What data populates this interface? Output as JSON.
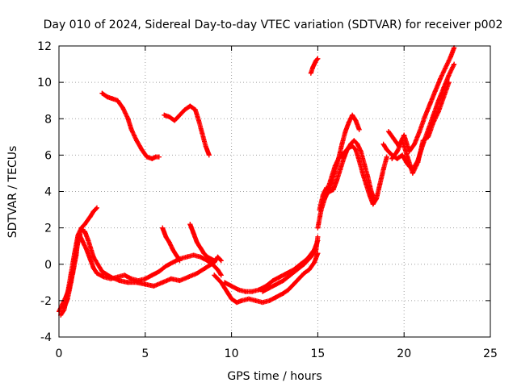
{
  "chart_data": {
    "type": "scatter",
    "title": "Day 010 of 2024, Sidereal Day-to-day VTEC variation (SDTVAR) for receiver p002",
    "xlabel": "GPS time / hours",
    "ylabel": "SDTVAR / TECUs",
    "xlim": [
      0,
      25
    ],
    "ylim": [
      -4,
      12
    ],
    "xticks": [
      0,
      5,
      10,
      15,
      20,
      25
    ],
    "yticks": [
      -4,
      -2,
      0,
      2,
      4,
      6,
      8,
      10,
      12
    ],
    "grid": true,
    "marker": "plus",
    "color": "#ff0000",
    "series": [
      {
        "x": [
          0.0,
          0.2,
          0.4,
          0.6,
          0.8,
          1.0,
          1.1,
          1.2,
          1.4,
          1.6,
          1.8,
          2.0,
          2.2,
          2.6,
          3.0,
          3.4,
          3.8,
          4.2,
          4.6,
          5.0,
          5.4,
          5.8,
          6.2,
          6.6,
          7.0,
          7.4,
          7.8,
          8.2,
          8.6,
          8.9,
          9.2,
          9.4
        ],
        "y": [
          -2.6,
          -2.2,
          -1.8,
          -1.3,
          -0.5,
          0.5,
          1.4,
          1.6,
          1.2,
          0.8,
          0.3,
          -0.2,
          -0.5,
          -0.7,
          -0.8,
          -0.7,
          -0.6,
          -0.8,
          -0.9,
          -0.8,
          -0.6,
          -0.4,
          -0.1,
          0.1,
          0.3,
          0.4,
          0.5,
          0.4,
          0.2,
          0.0,
          -0.3,
          -0.6
        ]
      },
      {
        "x": [
          0.1,
          0.3,
          0.5,
          0.7,
          0.9,
          1.1,
          1.3,
          1.5,
          1.8,
          2.0,
          2.2
        ],
        "y": [
          -2.8,
          -2.5,
          -1.6,
          -0.5,
          0.6,
          1.6,
          2.0,
          2.2,
          2.6,
          2.9,
          3.1
        ]
      },
      {
        "x": [
          0.3,
          0.5,
          0.7,
          0.9,
          1.1,
          1.3,
          1.5,
          1.7,
          2.0,
          2.5,
          3.0,
          3.5,
          4.0,
          4.5,
          5.0,
          5.5,
          6.0,
          6.5,
          7.0,
          7.5,
          8.0,
          8.5,
          9.0,
          9.2,
          9.4
        ],
        "y": [
          -2.4,
          -1.9,
          -1.0,
          0.2,
          1.2,
          1.9,
          1.8,
          1.3,
          0.4,
          -0.4,
          -0.7,
          -0.9,
          -1.0,
          -1.0,
          -1.1,
          -1.2,
          -1.0,
          -0.8,
          -0.9,
          -0.7,
          -0.5,
          -0.2,
          0.1,
          0.4,
          0.2
        ]
      },
      {
        "x": [
          2.5,
          2.8,
          3.1,
          3.4,
          3.7,
          4.0,
          4.2,
          4.5,
          4.8,
          5.1,
          5.4,
          5.6,
          5.8
        ],
        "y": [
          9.4,
          9.2,
          9.1,
          9.0,
          8.6,
          8.0,
          7.4,
          6.8,
          6.3,
          5.9,
          5.8,
          5.9,
          5.9
        ]
      },
      {
        "x": [
          6.1,
          6.4,
          6.7,
          7.0,
          7.3,
          7.6,
          7.9,
          8.1,
          8.3,
          8.5,
          8.7
        ],
        "y": [
          8.2,
          8.1,
          7.9,
          8.2,
          8.5,
          8.7,
          8.5,
          7.9,
          7.2,
          6.5,
          6.0
        ]
      },
      {
        "x": [
          6.0,
          6.2,
          6.4,
          6.6,
          6.8,
          7.0
        ],
        "y": [
          2.0,
          1.5,
          1.2,
          0.8,
          0.5,
          0.2
        ]
      },
      {
        "x": [
          7.6,
          7.8,
          8.0,
          8.2,
          8.4,
          8.6,
          8.8,
          9.0
        ],
        "y": [
          2.2,
          1.7,
          1.2,
          0.9,
          0.6,
          0.4,
          0.3,
          0.2
        ]
      },
      {
        "x": [
          9.0,
          9.2,
          9.4,
          9.6,
          9.8,
          10.0,
          10.3,
          10.6,
          11.0,
          11.4,
          11.8,
          12.2,
          12.6,
          13.0,
          13.3,
          13.6,
          13.9,
          14.2,
          14.5,
          14.8,
          15.0
        ],
        "y": [
          -0.6,
          -0.8,
          -1.0,
          -1.3,
          -1.6,
          -1.9,
          -2.1,
          -2.0,
          -1.9,
          -2.0,
          -2.1,
          -2.0,
          -1.8,
          -1.6,
          -1.4,
          -1.1,
          -0.8,
          -0.5,
          -0.3,
          0.1,
          0.6
        ]
      },
      {
        "x": [
          9.6,
          10.0,
          10.4,
          10.8,
          11.2,
          11.6,
          12.0,
          12.4,
          12.8,
          13.2,
          13.6,
          14.0,
          14.4,
          14.8,
          15.0
        ],
        "y": [
          -1.0,
          -1.2,
          -1.4,
          -1.5,
          -1.5,
          -1.4,
          -1.2,
          -0.9,
          -0.7,
          -0.5,
          -0.3,
          0.0,
          0.3,
          0.8,
          1.3
        ]
      },
      {
        "x": [
          11.8,
          12.2,
          12.6,
          13.0,
          13.4,
          13.8,
          14.2,
          14.6,
          14.9,
          15.0
        ],
        "y": [
          -1.5,
          -1.3,
          -1.1,
          -0.9,
          -0.6,
          -0.3,
          0.0,
          0.4,
          0.8,
          1.5
        ]
      },
      {
        "x": [
          14.6,
          14.7,
          14.8,
          14.9,
          15.0
        ],
        "y": [
          10.5,
          10.8,
          11.0,
          11.2,
          11.3
        ]
      },
      {
        "x": [
          15.0,
          15.2,
          15.4,
          15.6,
          15.8,
          16.0,
          16.2,
          16.4,
          16.6,
          16.8,
          17.0,
          17.2,
          17.4,
          17.6,
          17.8,
          18.0,
          18.2,
          18.4,
          18.6,
          18.8,
          19.0
        ],
        "y": [
          2.0,
          3.0,
          3.6,
          4.2,
          4.8,
          5.4,
          5.8,
          6.0,
          6.2,
          6.4,
          6.5,
          6.3,
          5.7,
          5.0,
          4.4,
          3.8,
          3.3,
          3.6,
          4.4,
          5.2,
          5.9
        ]
      },
      {
        "x": [
          15.1,
          15.3,
          15.5,
          15.7,
          15.9,
          16.1,
          16.3,
          16.5,
          16.7,
          16.9,
          17.1,
          17.3,
          17.5,
          17.7,
          17.9,
          18.1,
          18.3
        ],
        "y": [
          3.0,
          3.8,
          4.2,
          4.0,
          4.1,
          4.6,
          5.2,
          5.8,
          6.3,
          6.6,
          6.8,
          6.6,
          6.2,
          5.5,
          4.8,
          4.0,
          3.5
        ]
      },
      {
        "x": [
          15.4,
          15.6,
          15.8,
          16.0,
          16.2,
          16.4,
          16.6,
          16.8,
          17.0,
          17.2,
          17.4
        ],
        "y": [
          3.6,
          4.0,
          4.5,
          5.1,
          5.8,
          6.6,
          7.3,
          7.8,
          8.2,
          7.9,
          7.4
        ]
      },
      {
        "x": [
          18.8,
          19.0,
          19.3,
          19.6,
          19.9,
          20.2,
          20.5,
          20.8,
          21.1,
          21.4,
          21.7,
          22.0,
          22.3,
          22.6,
          22.9
        ],
        "y": [
          6.6,
          6.3,
          6.0,
          5.8,
          6.0,
          5.5,
          5.2,
          5.7,
          6.6,
          7.4,
          8.2,
          9.0,
          9.7,
          10.4,
          11.0
        ]
      },
      {
        "x": [
          19.1,
          19.4,
          19.7,
          20.0,
          20.3,
          20.6,
          20.9,
          21.2,
          21.5,
          21.8,
          22.1,
          22.4,
          22.7,
          22.9
        ],
        "y": [
          7.3,
          6.9,
          6.5,
          7.1,
          6.2,
          6.6,
          7.3,
          8.1,
          8.8,
          9.5,
          10.2,
          10.8,
          11.4,
          11.9
        ]
      },
      {
        "x": [
          19.3,
          19.6,
          19.9,
          20.2,
          20.5,
          20.8,
          21.1,
          21.4,
          21.7,
          22.0,
          22.3,
          22.6
        ],
        "y": [
          5.8,
          6.2,
          6.8,
          5.9,
          5.0,
          5.6,
          6.8,
          7.0,
          7.8,
          8.4,
          9.2,
          10.0
        ]
      }
    ]
  }
}
